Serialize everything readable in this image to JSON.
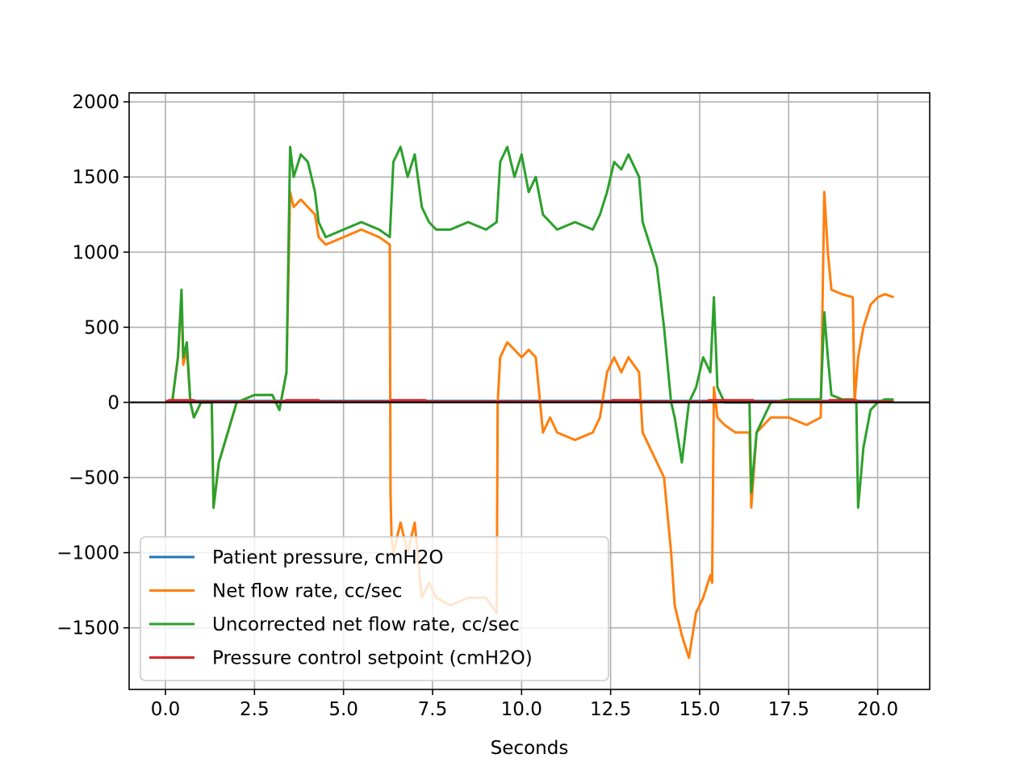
{
  "chart_data": {
    "type": "line",
    "title": "",
    "xlabel": "Seconds",
    "ylabel": "",
    "xlim": [
      -1.02,
      21.46
    ],
    "ylim": [
      -1910,
      2060
    ],
    "x_ticks": [
      0.0,
      2.5,
      5.0,
      7.5,
      10.0,
      12.5,
      15.0,
      17.5,
      20.0
    ],
    "x_tick_labels": [
      "0.0",
      "2.5",
      "5.0",
      "7.5",
      "10.0",
      "12.5",
      "15.0",
      "17.5",
      "20.0"
    ],
    "y_ticks": [
      -1500,
      -1000,
      -500,
      0,
      500,
      1000,
      1500,
      2000
    ],
    "y_tick_labels": [
      "−1500",
      "−1000",
      "−500",
      "0",
      "500",
      "1000",
      "1500",
      "2000"
    ],
    "grid": true,
    "zero_line": true,
    "legend_position": "lower-left",
    "series": [
      {
        "name": "Patient pressure, cmH2O",
        "color": "#1f77b4",
        "x": [
          0,
          20.45
        ],
        "y": [
          10,
          10
        ]
      },
      {
        "name": "Net flow rate, cc/sec",
        "color": "#ff7f0e",
        "x": [
          0,
          0.2,
          0.35,
          0.45,
          0.5,
          0.6,
          0.7,
          0.8,
          1.0,
          1.3,
          1.35,
          1.5,
          2.0,
          2.5,
          3.0,
          3.2,
          3.4,
          3.5,
          3.6,
          3.8,
          4.0,
          4.2,
          4.3,
          4.5,
          5.0,
          5.5,
          6.0,
          6.3,
          6.32,
          6.35,
          6.4,
          6.6,
          6.8,
          7.0,
          7.2,
          7.4,
          7.6,
          8.0,
          8.5,
          9.0,
          9.3,
          9.33,
          9.4,
          9.6,
          9.8,
          10.0,
          10.2,
          10.4,
          10.6,
          10.8,
          11.0,
          11.5,
          12.0,
          12.2,
          12.4,
          12.6,
          12.8,
          13.0,
          13.3,
          13.4,
          13.6,
          13.8,
          14.0,
          14.2,
          14.3,
          14.5,
          14.7,
          14.9,
          15.1,
          15.3,
          15.35,
          15.4,
          15.5,
          15.7,
          16.0,
          16.4,
          16.45,
          16.6,
          17.0,
          17.5,
          18.0,
          18.4,
          18.5,
          18.6,
          18.7,
          19.0,
          19.3,
          19.35,
          19.45,
          19.6,
          19.8,
          20.0,
          20.2,
          20.45
        ],
        "y": [
          0,
          20,
          300,
          700,
          250,
          350,
          0,
          -100,
          0,
          0,
          -700,
          -400,
          0,
          50,
          50,
          -50,
          200,
          1400,
          1300,
          1350,
          1300,
          1250,
          1100,
          1050,
          1100,
          1150,
          1100,
          1050,
          -600,
          -900,
          -1000,
          -800,
          -1000,
          -800,
          -1300,
          -1200,
          -1300,
          -1350,
          -1300,
          -1300,
          -1400,
          0,
          300,
          400,
          350,
          300,
          350,
          300,
          -200,
          -100,
          -200,
          -250,
          -200,
          -100,
          200,
          300,
          200,
          300,
          200,
          -200,
          -300,
          -400,
          -500,
          -1000,
          -1350,
          -1550,
          -1700,
          -1400,
          -1300,
          -1150,
          -1200,
          100,
          -100,
          -150,
          -200,
          -200,
          -700,
          -200,
          -100,
          -100,
          -150,
          -100,
          1400,
          1000,
          750,
          720,
          700,
          0,
          300,
          500,
          650,
          700,
          720,
          700
        ]
      },
      {
        "name": "Uncorrected net flow rate, cc/sec",
        "color": "#2ca02c",
        "x": [
          0,
          0.2,
          0.35,
          0.45,
          0.5,
          0.6,
          0.7,
          0.8,
          1.0,
          1.3,
          1.35,
          1.5,
          2.0,
          2.5,
          3.0,
          3.2,
          3.4,
          3.5,
          3.6,
          3.8,
          4.0,
          4.2,
          4.3,
          4.5,
          5.0,
          5.5,
          6.0,
          6.3,
          6.4,
          6.6,
          6.8,
          7.0,
          7.2,
          7.4,
          7.6,
          8.0,
          8.5,
          9.0,
          9.3,
          9.4,
          9.6,
          9.8,
          10.0,
          10.2,
          10.4,
          10.6,
          10.8,
          11.0,
          11.5,
          12.0,
          12.2,
          12.4,
          12.6,
          12.8,
          13.0,
          13.3,
          13.4,
          13.6,
          13.8,
          14.0,
          14.2,
          14.3,
          14.5,
          14.7,
          14.9,
          15.1,
          15.3,
          15.4,
          15.5,
          15.7,
          16.0,
          16.4,
          16.45,
          16.6,
          17.0,
          17.5,
          18.0,
          18.4,
          18.5,
          18.6,
          18.7,
          19.0,
          19.3,
          19.4,
          19.45,
          19.6,
          19.8,
          20.0,
          20.2,
          20.45
        ],
        "y": [
          0,
          20,
          300,
          750,
          300,
          400,
          0,
          -100,
          0,
          0,
          -700,
          -400,
          0,
          50,
          50,
          -50,
          200,
          1700,
          1500,
          1650,
          1600,
          1400,
          1200,
          1100,
          1150,
          1200,
          1150,
          1100,
          1600,
          1700,
          1500,
          1650,
          1300,
          1200,
          1150,
          1150,
          1200,
          1150,
          1200,
          1600,
          1700,
          1500,
          1650,
          1400,
          1500,
          1250,
          1200,
          1150,
          1200,
          1150,
          1250,
          1400,
          1600,
          1550,
          1650,
          1500,
          1200,
          1050,
          900,
          500,
          0,
          -100,
          -400,
          0,
          100,
          300,
          200,
          700,
          100,
          0,
          0,
          0,
          -600,
          -200,
          0,
          20,
          20,
          20,
          600,
          300,
          50,
          20,
          20,
          0,
          -700,
          -300,
          -50,
          0,
          20,
          20
        ]
      },
      {
        "name": "Pressure control setpoint (cmH2O)",
        "color": "#d62728",
        "x": [
          0,
          0.05,
          0.1,
          0.8,
          0.85,
          3.3,
          3.4,
          4.3,
          4.35,
          6.3,
          6.35,
          7.3,
          7.35,
          9.3,
          9.35,
          12.5,
          12.55,
          13.3,
          13.35,
          15.2,
          15.25,
          16.5,
          16.55,
          18.6,
          18.65,
          19.4,
          19.45,
          20.45
        ],
        "y": [
          5,
          5,
          15,
          15,
          5,
          5,
          15,
          15,
          5,
          5,
          15,
          15,
          5,
          5,
          5,
          5,
          15,
          15,
          5,
          5,
          15,
          15,
          5,
          5,
          15,
          15,
          5,
          5
        ]
      }
    ]
  }
}
